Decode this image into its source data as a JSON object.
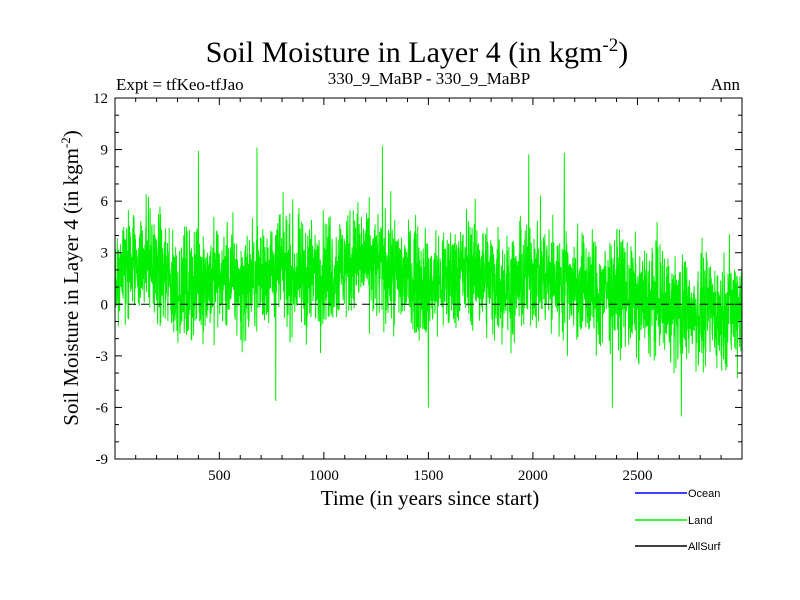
{
  "chart_data": {
    "type": "line",
    "title": "Soil Moisture in Layer 4 (in kgm",
    "title_sup": "-2",
    "title_close": ")",
    "subtitle_left": "Expt = tfKeo-tfJao",
    "subtitle_center": "330_9_MaBP - 330_9_MaBP",
    "subtitle_right": "Ann",
    "xlabel": "Time (in years since start)",
    "ylabel": "Soil Moisture in Layer 4 (in kgm",
    "ylabel_sup": "-2",
    "ylabel_close": ")",
    "xlim": [
      1,
      3000
    ],
    "ylim": [
      -9,
      12
    ],
    "xticks": [
      500,
      1000,
      1500,
      2000,
      2500
    ],
    "yticks": [
      12,
      9,
      6,
      3,
      0,
      -3,
      -6,
      -9
    ],
    "zero_line": {
      "y": 0,
      "style": "dashed",
      "color": "#000000"
    },
    "grid": false,
    "legend_placement": "bottom-right",
    "series": [
      {
        "name": "Ocean",
        "color": "#0000ff",
        "values": []
      },
      {
        "name": "Land",
        "color": "#00ee00",
        "x": [
          1,
          50,
          100,
          150,
          200,
          250,
          300,
          350,
          400,
          450,
          500,
          550,
          600,
          650,
          700,
          750,
          800,
          850,
          900,
          950,
          1000,
          1050,
          1100,
          1150,
          1200,
          1250,
          1300,
          1350,
          1400,
          1450,
          1500,
          1550,
          1600,
          1650,
          1700,
          1750,
          1800,
          1850,
          1900,
          1950,
          2000,
          2050,
          2100,
          2150,
          2200,
          2250,
          2300,
          2350,
          2400,
          2450,
          2500,
          2550,
          2600,
          2650,
          2700,
          2750,
          2800,
          2850,
          2900,
          2950,
          3000
        ],
        "values": [
          1.5,
          2.0,
          2.5,
          3.0,
          2.0,
          1.5,
          1.0,
          1.0,
          1.2,
          1.5,
          1.5,
          1.5,
          1.0,
          1.3,
          1.8,
          2.0,
          2.0,
          1.8,
          1.5,
          1.7,
          2.0,
          2.0,
          2.3,
          2.5,
          2.5,
          2.2,
          2.0,
          1.8,
          1.5,
          1.5,
          1.0,
          1.3,
          1.5,
          2.0,
          2.0,
          1.7,
          1.5,
          1.2,
          1.0,
          1.5,
          2.0,
          1.8,
          1.2,
          1.5,
          1.0,
          1.0,
          0.5,
          0.8,
          1.0,
          0.5,
          0.0,
          0.2,
          0.3,
          0.0,
          -0.5,
          -0.3,
          -0.5,
          -0.2,
          -0.5,
          0.0,
          0.0
        ],
        "noise_amplitude": 2.5,
        "extremes": [
          [
            400,
            8.9
          ],
          [
            680,
            9.1
          ],
          [
            1280,
            9.2
          ],
          [
            1980,
            8.7
          ],
          [
            2150,
            8.8
          ],
          [
            1500,
            -6.0
          ],
          [
            2380,
            -6.0
          ],
          [
            2710,
            -6.5
          ],
          [
            770,
            -5.6
          ]
        ]
      },
      {
        "name": "AllSurf",
        "color": "#000000",
        "values": []
      }
    ]
  }
}
